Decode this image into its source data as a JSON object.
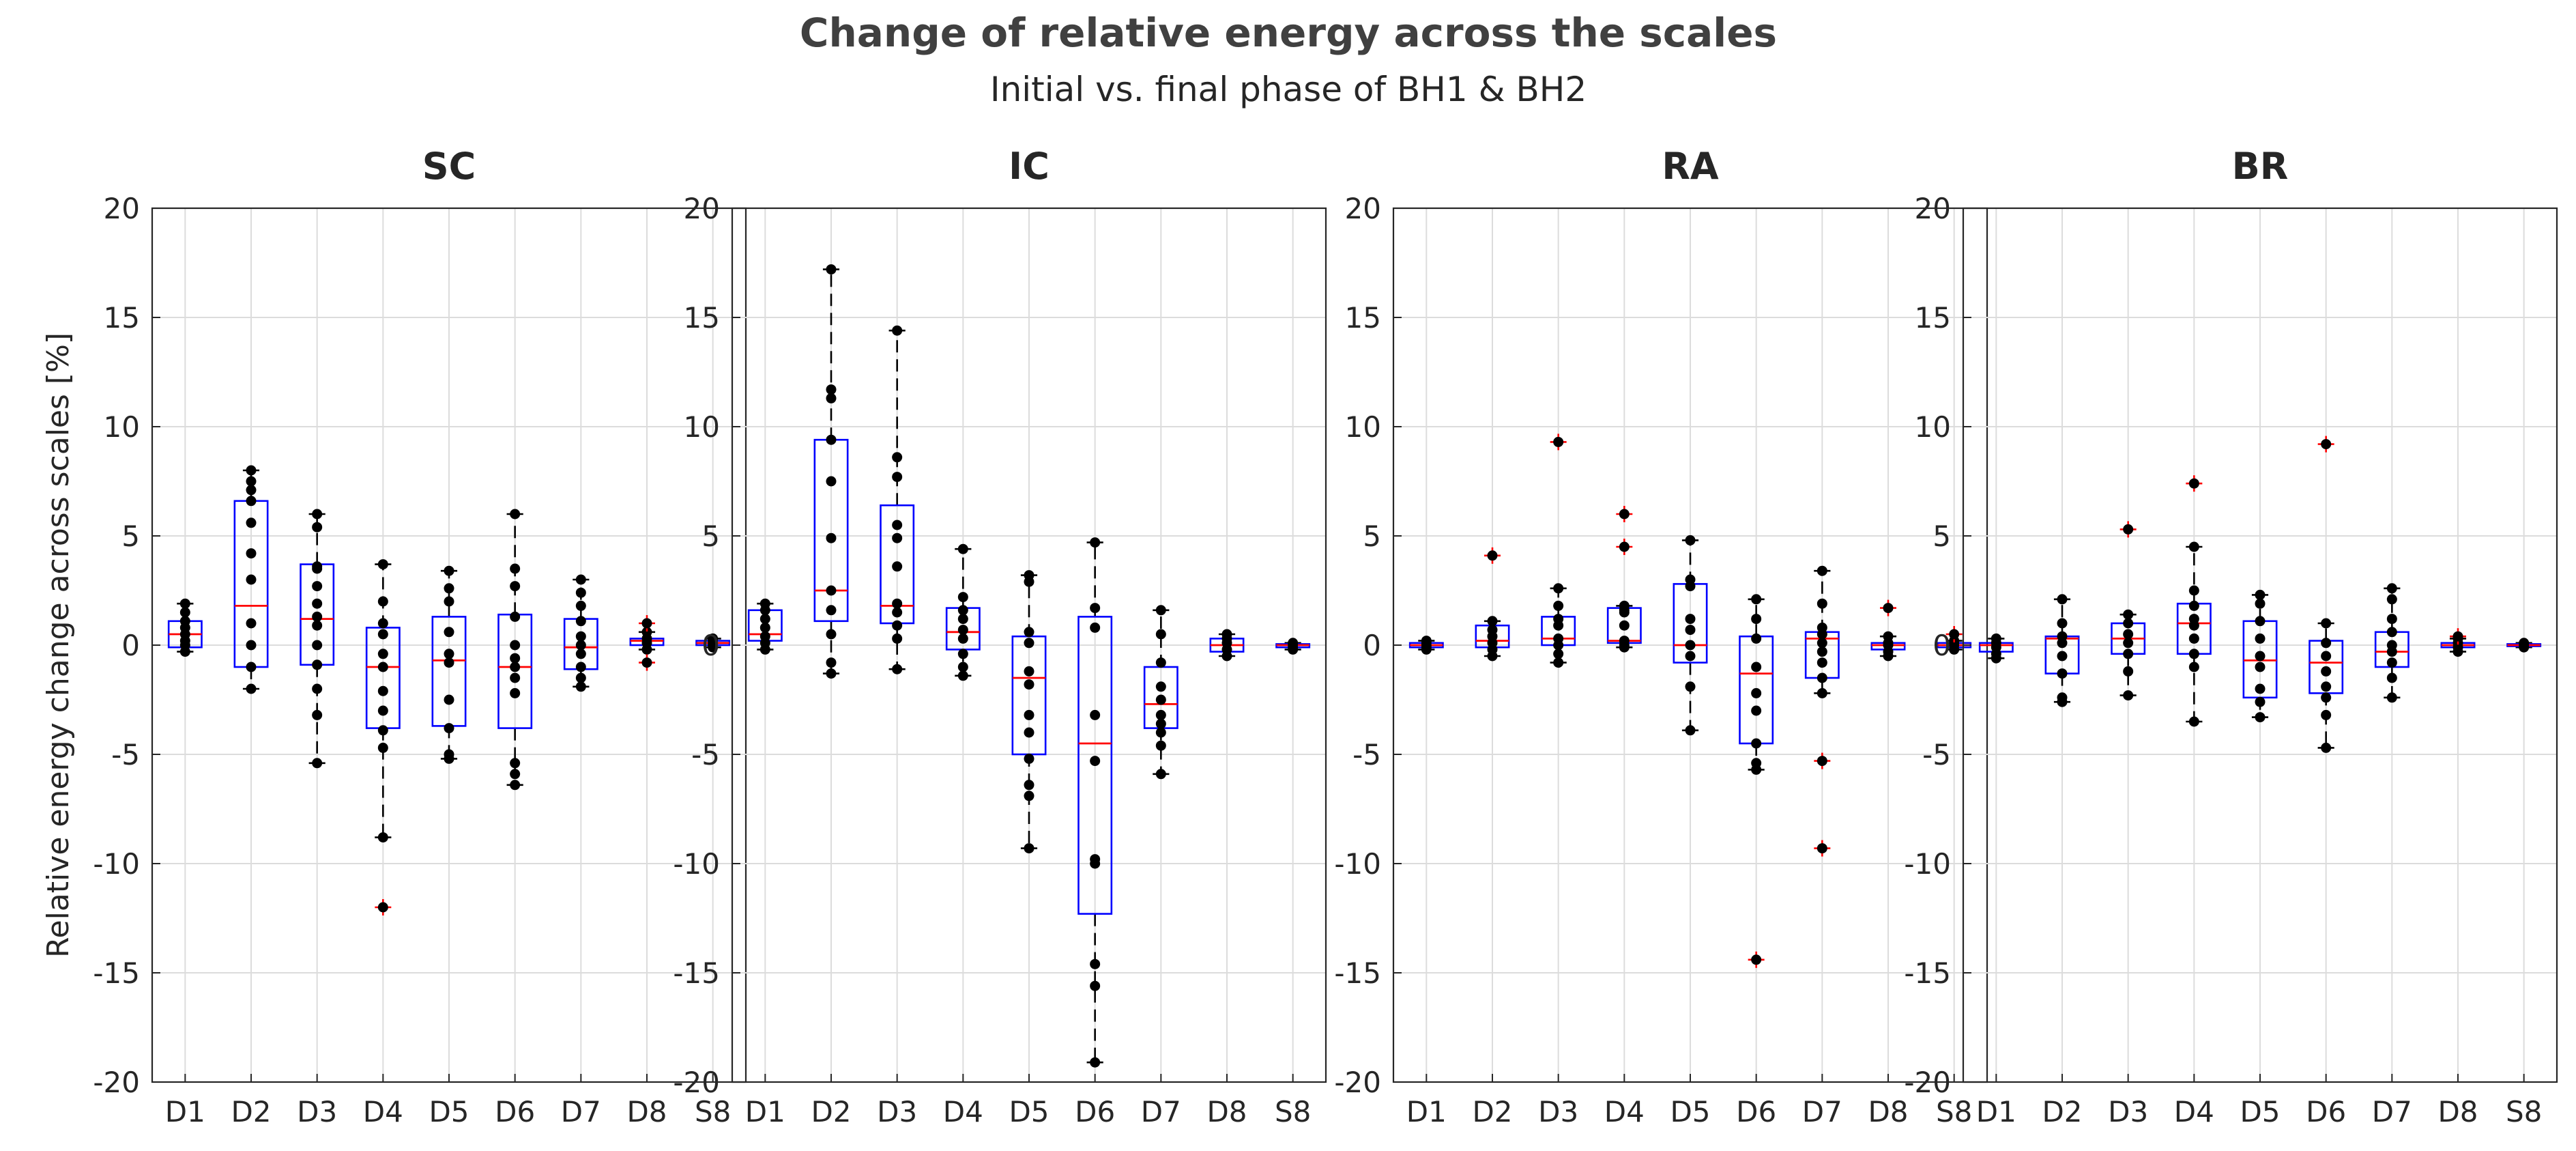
{
  "figure": {
    "title": "Change of relative energy across the scales",
    "subtitle": "Initial vs. final phase of BH1 & BH2"
  },
  "chart_data": [
    {
      "type": "box",
      "title": "SC",
      "ylabel": "Relative energy change across scales [%]",
      "xlabel": "",
      "ylim": [
        -20,
        20
      ],
      "yticks": [
        -20,
        -15,
        -10,
        -5,
        0,
        5,
        10,
        15,
        20
      ],
      "grid": true,
      "categories": [
        "D1",
        "D2",
        "D3",
        "D4",
        "D5",
        "D6",
        "D7",
        "D8",
        "S8"
      ],
      "boxes": [
        {
          "q1": -0.1,
          "median": 0.5,
          "q3": 1.1,
          "whisker_low": -0.3,
          "whisker_high": 1.9,
          "outliers": [],
          "points": [
            1.9,
            1.5,
            1.1,
            0.8,
            0.5,
            0.2,
            0.0,
            -0.3
          ]
        },
        {
          "q1": -1.0,
          "median": 1.8,
          "q3": 6.6,
          "whisker_low": -2.0,
          "whisker_high": 8.0,
          "outliers": [],
          "points": [
            8.0,
            7.5,
            7.1,
            6.6,
            5.6,
            4.2,
            3.0,
            1.0,
            0.0,
            -1.0,
            -2.0
          ]
        },
        {
          "q1": -0.9,
          "median": 1.2,
          "q3": 3.7,
          "whisker_low": -5.4,
          "whisker_high": 6.0,
          "outliers": [],
          "points": [
            6.0,
            5.4,
            3.6,
            3.5,
            2.7,
            1.9,
            1.3,
            0.9,
            0.0,
            -0.9,
            -2.0,
            -3.2,
            -5.4
          ]
        },
        {
          "q1": -3.8,
          "median": -1.0,
          "q3": 0.8,
          "whisker_low": -8.8,
          "whisker_high": 3.7,
          "outliers": [
            -12.0
          ],
          "points": [
            3.7,
            2.0,
            1.0,
            0.5,
            -0.4,
            -1.0,
            -2.1,
            -3.0,
            -3.9,
            -4.7,
            -8.8
          ]
        },
        {
          "q1": -3.7,
          "median": -0.7,
          "q3": 1.3,
          "whisker_low": -5.2,
          "whisker_high": 3.4,
          "outliers": [],
          "points": [
            3.4,
            2.6,
            2.0,
            0.6,
            -0.4,
            -0.8,
            -2.5,
            -3.8,
            -5.0,
            -5.2
          ]
        },
        {
          "q1": -3.8,
          "median": -1.0,
          "q3": 1.4,
          "whisker_low": -6.4,
          "whisker_high": 6.0,
          "outliers": [],
          "points": [
            6.0,
            3.5,
            2.7,
            1.3,
            0.0,
            -0.6,
            -1.0,
            -1.5,
            -2.2,
            -5.4,
            -5.9,
            -6.4
          ]
        },
        {
          "q1": -1.1,
          "median": -0.1,
          "q3": 1.2,
          "whisker_low": -1.9,
          "whisker_high": 3.0,
          "outliers": [],
          "points": [
            3.0,
            2.4,
            1.8,
            1.1,
            0.4,
            0.0,
            -0.4,
            -1.0,
            -1.5,
            -1.9
          ]
        },
        {
          "q1": 0.0,
          "median": 0.2,
          "q3": 0.3,
          "whisker_low": -0.2,
          "whisker_high": 0.6,
          "outliers": [
            1.0,
            -0.8
          ],
          "points": [
            0.6,
            0.3,
            0.1,
            -0.2
          ]
        },
        {
          "q1": 0.0,
          "median": 0.1,
          "q3": 0.2,
          "whisker_low": -0.1,
          "whisker_high": 0.3,
          "outliers": [],
          "points": [
            0.3,
            0.2,
            0.1,
            0.0,
            -0.1
          ]
        }
      ]
    },
    {
      "type": "box",
      "title": "IC",
      "ylabel": "",
      "xlabel": "",
      "ylim": [
        -20,
        20
      ],
      "yticks": [
        -20,
        -15,
        -10,
        -5,
        0,
        5,
        10,
        15,
        20
      ],
      "grid": true,
      "categories": [
        "D1",
        "D2",
        "D3",
        "D4",
        "D5",
        "D6",
        "D7",
        "D8",
        "S8"
      ],
      "boxes": [
        {
          "q1": 0.2,
          "median": 0.5,
          "q3": 1.6,
          "whisker_low": -0.2,
          "whisker_high": 1.9,
          "outliers": [],
          "points": [
            1.9,
            1.6,
            1.2,
            0.8,
            0.4,
            0.1,
            -0.2
          ]
        },
        {
          "q1": 1.1,
          "median": 2.5,
          "q3": 9.4,
          "whisker_low": -1.3,
          "whisker_high": 17.2,
          "outliers": [],
          "points": [
            17.2,
            11.7,
            11.3,
            9.4,
            7.5,
            4.9,
            2.5,
            1.6,
            0.5,
            -0.8,
            -1.3
          ]
        },
        {
          "q1": 1.0,
          "median": 1.8,
          "q3": 6.4,
          "whisker_low": -1.1,
          "whisker_high": 14.4,
          "outliers": [],
          "points": [
            14.4,
            8.6,
            7.7,
            5.5,
            4.9,
            3.6,
            1.9,
            1.5,
            0.9,
            0.3,
            -1.1
          ]
        },
        {
          "q1": -0.2,
          "median": 0.6,
          "q3": 1.7,
          "whisker_low": -1.4,
          "whisker_high": 4.4,
          "outliers": [],
          "points": [
            4.4,
            2.2,
            1.6,
            1.2,
            0.7,
            0.3,
            -0.4,
            -1.0,
            -1.4
          ]
        },
        {
          "q1": -5.0,
          "median": -1.5,
          "q3": 0.4,
          "whisker_low": -9.3,
          "whisker_high": 3.2,
          "outliers": [],
          "points": [
            3.2,
            2.9,
            0.6,
            0.1,
            -1.2,
            -1.8,
            -3.2,
            -4.0,
            -5.2,
            -6.4,
            -6.9,
            -9.3
          ]
        },
        {
          "q1": -12.3,
          "median": -4.5,
          "q3": 1.3,
          "whisker_low": -19.1,
          "whisker_high": 4.7,
          "outliers": [],
          "points": [
            4.7,
            1.7,
            0.8,
            -3.2,
            -5.3,
            -9.8,
            -10.0,
            -14.6,
            -15.6,
            -19.1
          ]
        },
        {
          "q1": -3.8,
          "median": -2.7,
          "q3": -1.0,
          "whisker_low": -5.9,
          "whisker_high": 1.6,
          "outliers": [],
          "points": [
            1.6,
            0.5,
            -0.8,
            -1.9,
            -2.5,
            -3.2,
            -3.6,
            -4.0,
            -4.6,
            -5.9
          ]
        },
        {
          "q1": -0.3,
          "median": 0.0,
          "q3": 0.3,
          "whisker_low": -0.5,
          "whisker_high": 0.5,
          "outliers": [],
          "points": [
            0.5,
            0.3,
            0.1,
            -0.2,
            -0.5
          ]
        },
        {
          "q1": -0.1,
          "median": 0.0,
          "q3": 0.05,
          "whisker_low": -0.2,
          "whisker_high": 0.1,
          "outliers": [],
          "points": [
            0.1,
            0.0,
            -0.1,
            -0.2
          ]
        }
      ]
    },
    {
      "type": "box",
      "title": "RA",
      "ylabel": "",
      "xlabel": "",
      "ylim": [
        -20,
        20
      ],
      "yticks": [
        -20,
        -15,
        -10,
        -5,
        0,
        5,
        10,
        15,
        20
      ],
      "grid": true,
      "categories": [
        "D1",
        "D2",
        "D3",
        "D4",
        "D5",
        "D6",
        "D7",
        "D8",
        "S8"
      ],
      "boxes": [
        {
          "q1": -0.1,
          "median": 0.0,
          "q3": 0.1,
          "whisker_low": -0.2,
          "whisker_high": 0.2,
          "outliers": [],
          "points": [
            0.2,
            0.1,
            0.0,
            -0.1,
            -0.2
          ]
        },
        {
          "q1": -0.1,
          "median": 0.2,
          "q3": 0.9,
          "whisker_low": -0.5,
          "whisker_high": 1.1,
          "outliers": [
            4.1
          ],
          "points": [
            1.1,
            0.7,
            0.4,
            0.1,
            -0.2,
            -0.5
          ]
        },
        {
          "q1": 0.0,
          "median": 0.3,
          "q3": 1.3,
          "whisker_low": -0.8,
          "whisker_high": 2.6,
          "outliers": [
            9.3
          ],
          "points": [
            2.6,
            1.8,
            1.2,
            0.9,
            0.3,
            0.0,
            -0.4,
            -0.8
          ]
        },
        {
          "q1": 0.1,
          "median": 0.2,
          "q3": 1.7,
          "whisker_low": -0.1,
          "whisker_high": 1.8,
          "outliers": [
            6.0,
            4.5
          ],
          "points": [
            1.8,
            1.6,
            1.5,
            0.9,
            0.2,
            0.0,
            -0.1
          ]
        },
        {
          "q1": -0.8,
          "median": 0.0,
          "q3": 2.8,
          "whisker_low": -3.9,
          "whisker_high": 4.8,
          "outliers": [],
          "points": [
            4.8,
            3.0,
            2.7,
            1.2,
            0.7,
            0.0,
            -0.5,
            -1.9,
            -3.9
          ]
        },
        {
          "q1": -4.5,
          "median": -1.3,
          "q3": 0.4,
          "whisker_low": -5.7,
          "whisker_high": 2.1,
          "outliers": [
            -14.4
          ],
          "points": [
            2.1,
            1.2,
            0.3,
            -1.0,
            -2.2,
            -3.0,
            -4.5,
            -5.4,
            -5.7
          ]
        },
        {
          "q1": -1.5,
          "median": 0.3,
          "q3": 0.6,
          "whisker_low": -2.2,
          "whisker_high": 3.4,
          "outliers": [
            -5.3,
            -9.3
          ],
          "points": [
            3.4,
            1.9,
            0.8,
            0.5,
            0.1,
            -0.3,
            -0.8,
            -1.5,
            -2.2
          ]
        },
        {
          "q1": -0.2,
          "median": 0.0,
          "q3": 0.1,
          "whisker_low": -0.5,
          "whisker_high": 0.4,
          "outliers": [
            1.7
          ],
          "points": [
            0.4,
            0.1,
            0.0,
            -0.3,
            -0.5
          ]
        },
        {
          "q1": -0.1,
          "median": 0.0,
          "q3": 0.1,
          "whisker_low": -0.2,
          "whisker_high": 0.2,
          "outliers": [
            0.5
          ],
          "points": [
            0.2,
            0.1,
            0.0,
            -0.2
          ]
        }
      ]
    },
    {
      "type": "box",
      "title": "BR",
      "ylabel": "",
      "xlabel": "",
      "ylim": [
        -20,
        20
      ],
      "yticks": [
        -20,
        -15,
        -10,
        -5,
        0,
        5,
        10,
        15,
        20
      ],
      "grid": true,
      "categories": [
        "D1",
        "D2",
        "D3",
        "D4",
        "D5",
        "D6",
        "D7",
        "D8",
        "S8"
      ],
      "boxes": [
        {
          "q1": -0.3,
          "median": 0.0,
          "q3": 0.1,
          "whisker_low": -0.6,
          "whisker_high": 0.3,
          "outliers": [],
          "points": [
            0.3,
            0.1,
            -0.1,
            -0.4,
            -0.6
          ]
        },
        {
          "q1": -1.3,
          "median": 0.3,
          "q3": 0.4,
          "whisker_low": -2.6,
          "whisker_high": 2.1,
          "outliers": [],
          "points": [
            2.1,
            1.0,
            0.4,
            0.1,
            -0.5,
            -1.3,
            -2.4,
            -2.6
          ]
        },
        {
          "q1": -0.4,
          "median": 0.3,
          "q3": 1.0,
          "whisker_low": -2.3,
          "whisker_high": 1.4,
          "outliers": [
            5.3
          ],
          "points": [
            1.4,
            1.0,
            0.5,
            0.1,
            -0.4,
            -1.2,
            -2.3
          ]
        },
        {
          "q1": -0.4,
          "median": 1.0,
          "q3": 1.9,
          "whisker_low": -3.5,
          "whisker_high": 4.5,
          "outliers": [
            7.4
          ],
          "points": [
            4.5,
            2.5,
            1.8,
            1.2,
            0.9,
            0.3,
            -0.4,
            -1.0,
            -3.5
          ]
        },
        {
          "q1": -2.4,
          "median": -0.7,
          "q3": 1.1,
          "whisker_low": -3.3,
          "whisker_high": 2.3,
          "outliers": [],
          "points": [
            2.3,
            1.9,
            1.1,
            0.3,
            -0.5,
            -1.0,
            -2.0,
            -2.6,
            -3.3
          ]
        },
        {
          "q1": -2.2,
          "median": -0.8,
          "q3": 0.2,
          "whisker_low": -4.7,
          "whisker_high": 1.0,
          "outliers": [
            9.2
          ],
          "points": [
            1.0,
            0.1,
            -0.5,
            -1.2,
            -1.9,
            -2.4,
            -3.2,
            -4.7
          ]
        },
        {
          "q1": -1.0,
          "median": -0.3,
          "q3": 0.6,
          "whisker_low": -2.4,
          "whisker_high": 2.6,
          "outliers": [],
          "points": [
            2.6,
            2.1,
            1.2,
            0.6,
            0.0,
            -0.3,
            -0.8,
            -1.5,
            -2.4
          ]
        },
        {
          "q1": -0.1,
          "median": 0.0,
          "q3": 0.1,
          "whisker_low": -0.3,
          "whisker_high": 0.3,
          "outliers": [
            0.4
          ],
          "points": [
            0.3,
            0.1,
            -0.1,
            -0.3
          ]
        },
        {
          "q1": -0.05,
          "median": 0.0,
          "q3": 0.05,
          "whisker_low": -0.1,
          "whisker_high": 0.1,
          "outliers": [],
          "points": [
            0.1,
            0.0,
            -0.1
          ]
        }
      ]
    }
  ]
}
